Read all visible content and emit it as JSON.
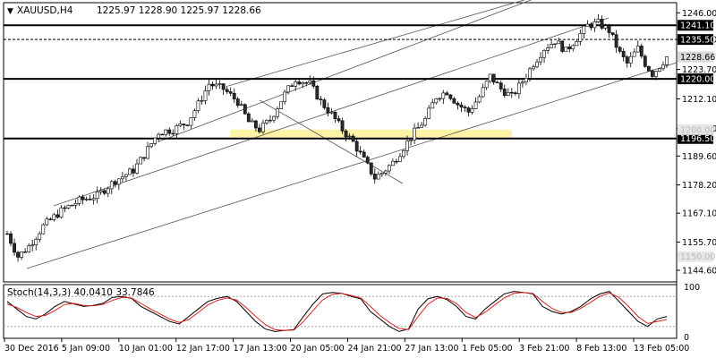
{
  "header": {
    "symbol": "XAUUSD,H4",
    "ohlc": "1225.97 1228.90 1225.97 1228.66"
  },
  "colors": {
    "bull_fill": "#ffffff",
    "bear_fill": "#2b2b2b",
    "wick": "#000000",
    "support_zone": "#fff3a6",
    "stoch_main": "#000000",
    "stoch_signal": "#e02020",
    "current_price_badge": "#d9d9d9",
    "level_badge": "#000000"
  },
  "chart_data": [
    {
      "type": "candlestick",
      "title": "XAUUSD,H4",
      "ylim": [
        1140,
        1250
      ],
      "yticks": [
        "1246.00",
        "1235.50",
        "1223.70",
        "1212.10",
        "1200.40",
        "1189.60",
        "1178.20",
        "1167.10",
        "1155.70",
        "1144.60"
      ],
      "xticks": [
        "30 Dec 2016",
        "5 Jan 09:00",
        "10 Jan 01:00",
        "12 Jan 17:00",
        "17 Jan 13:00",
        "20 Jan 05:00",
        "24 Jan 21:00",
        "27 Jan 13:00",
        "1 Feb 05:00",
        "3 Feb 21:00",
        "8 Feb 13:00",
        "13 Feb 05:00"
      ],
      "price_path": [
        [
          0,
          1159
        ],
        [
          3,
          1150
        ],
        [
          6,
          1154
        ],
        [
          10,
          1162
        ],
        [
          15,
          1168
        ],
        [
          20,
          1172
        ],
        [
          25,
          1174
        ],
        [
          30,
          1180
        ],
        [
          35,
          1184
        ],
        [
          38,
          1190
        ],
        [
          42,
          1199
        ],
        [
          46,
          1200
        ],
        [
          50,
          1203
        ],
        [
          53,
          1210
        ],
        [
          56,
          1218
        ],
        [
          60,
          1216
        ],
        [
          64,
          1211
        ],
        [
          67,
          1203
        ],
        [
          70,
          1200
        ],
        [
          73,
          1204
        ],
        [
          77,
          1214
        ],
        [
          80,
          1220
        ],
        [
          84,
          1218
        ],
        [
          87,
          1211
        ],
        [
          90,
          1206
        ],
        [
          93,
          1200
        ],
        [
          96,
          1195
        ],
        [
          99,
          1188
        ],
        [
          102,
          1181
        ],
        [
          104,
          1183
        ],
        [
          107,
          1187
        ],
        [
          110,
          1193
        ],
        [
          113,
          1199
        ],
        [
          116,
          1204
        ],
        [
          119,
          1213
        ],
        [
          122,
          1215
        ],
        [
          125,
          1210
        ],
        [
          128,
          1207
        ],
        [
          131,
          1213
        ],
        [
          134,
          1221
        ],
        [
          137,
          1216
        ],
        [
          140,
          1213
        ],
        [
          143,
          1219
        ],
        [
          146,
          1226
        ],
        [
          149,
          1232
        ],
        [
          152,
          1235
        ],
        [
          155,
          1231
        ],
        [
          158,
          1236
        ],
        [
          161,
          1241
        ],
        [
          164,
          1242
        ],
        [
          167,
          1239
        ],
        [
          170,
          1230
        ],
        [
          172,
          1226
        ],
        [
          175,
          1232
        ],
        [
          177,
          1226
        ],
        [
          179,
          1222
        ],
        [
          181,
          1225
        ],
        [
          183,
          1228.66
        ]
      ],
      "horizontal_levels": [
        {
          "price": 1241.1,
          "label": "1241.10",
          "style": "solid-bold"
        },
        {
          "price": 1235.5,
          "label": "1235.50",
          "style": "dashed"
        },
        {
          "price": 1220.0,
          "label": "1220.00",
          "style": "solid-bold"
        },
        {
          "price": 1196.5,
          "label": "1196.50",
          "style": "solid-bold"
        }
      ],
      "current_price_label": "1228.66",
      "faded_labels": [
        "1200.00",
        "1150.00"
      ],
      "support_zone": {
        "from": 1197,
        "to": 1200
      }
    },
    {
      "type": "line",
      "title": "Stoch(14,3,3) 40.0410 33.7846",
      "ylim": [
        0,
        100
      ],
      "yticks": [
        "100",
        "0"
      ],
      "levels": [
        80,
        20
      ],
      "series": [
        {
          "name": "Main",
          "values": [
            70,
            55,
            40,
            35,
            45,
            60,
            70,
            65,
            60,
            62,
            66,
            78,
            80,
            76,
            60,
            50,
            40,
            30,
            25,
            40,
            55,
            70,
            76,
            80,
            70,
            50,
            30,
            15,
            10,
            12,
            14,
            40,
            65,
            85,
            88,
            86,
            80,
            75,
            50,
            35,
            20,
            10,
            15,
            55,
            75,
            80,
            74,
            60,
            40,
            35,
            55,
            70,
            85,
            90,
            88,
            85,
            60,
            50,
            45,
            50,
            60,
            75,
            85,
            90,
            70,
            50,
            30,
            20,
            35,
            40
          ]
        },
        {
          "name": "Signal",
          "values": [
            65,
            58,
            48,
            40,
            42,
            52,
            64,
            66,
            62,
            61,
            64,
            72,
            78,
            77,
            66,
            55,
            45,
            35,
            28,
            34,
            48,
            63,
            72,
            77,
            73,
            58,
            40,
            24,
            14,
            12,
            13,
            30,
            52,
            73,
            84,
            86,
            82,
            77,
            60,
            42,
            28,
            16,
            14,
            40,
            64,
            77,
            76,
            66,
            48,
            38,
            48,
            63,
            77,
            86,
            88,
            86,
            70,
            56,
            48,
            48,
            56,
            68,
            80,
            87,
            78,
            60,
            40,
            26,
            30,
            34
          ]
        }
      ]
    }
  ]
}
